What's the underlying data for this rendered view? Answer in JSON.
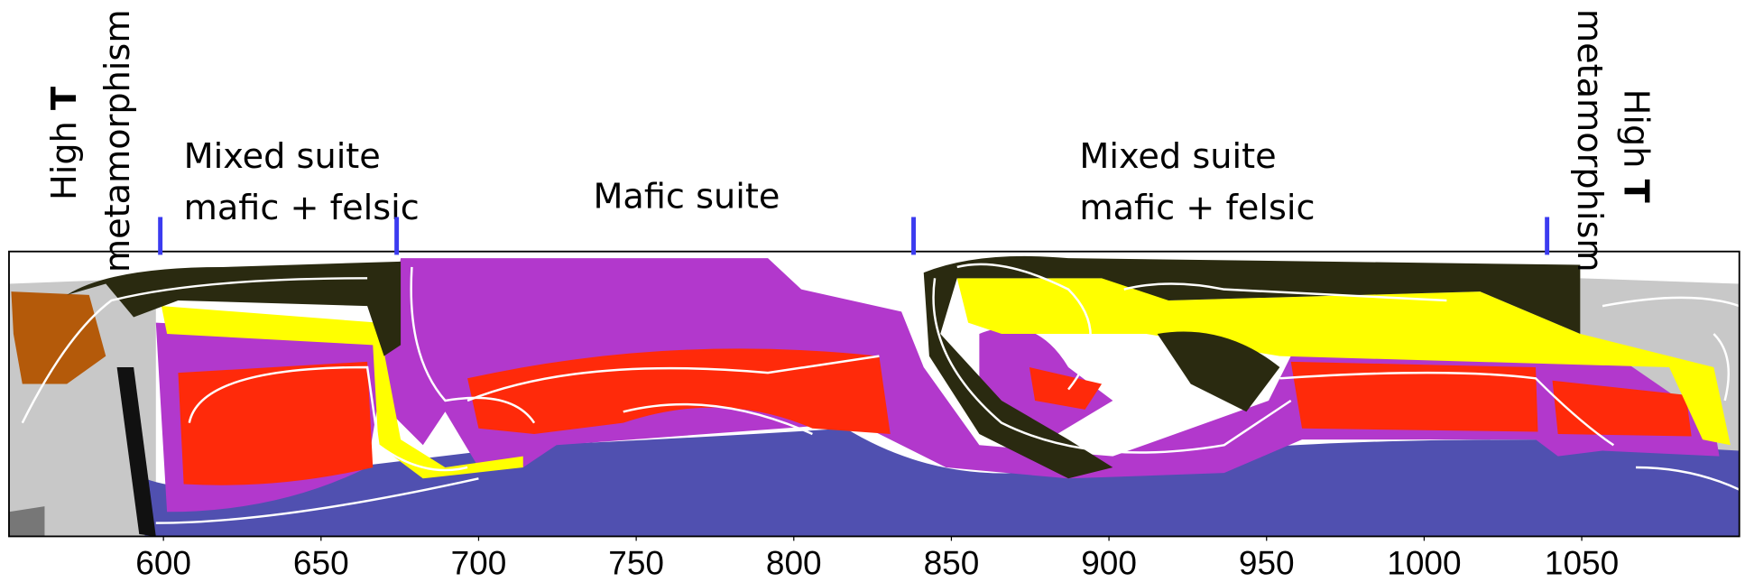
{
  "chart_data": {
    "type": "section",
    "labels": {
      "left_high": "High",
      "left_t": "T",
      "left_meta": "metamorphism",
      "right_high": "High",
      "right_t": "T",
      "right_meta": "metamorphism"
    },
    "suites": [
      {
        "name": "Mixed suite",
        "detail": "mafic + felsic"
      },
      {
        "name": "Mafic suite"
      },
      {
        "name": "Mixed suite",
        "detail": "mafic + felsic"
      }
    ],
    "boundaries": [
      599,
      674,
      838,
      1039
    ],
    "boundary_color": "#3b3bf0",
    "xlim": [
      551,
      1100
    ],
    "xticks": [
      600,
      650,
      700,
      750,
      800,
      850,
      900,
      950,
      1000,
      1050
    ]
  }
}
